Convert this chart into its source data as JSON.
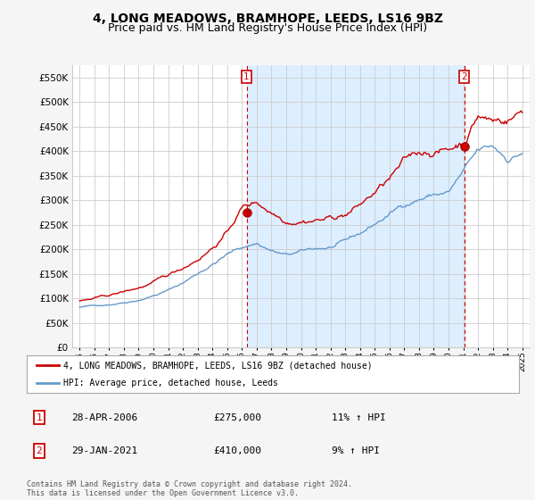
{
  "title": "4, LONG MEADOWS, BRAMHOPE, LEEDS, LS16 9BZ",
  "subtitle": "Price paid vs. HM Land Registry's House Price Index (HPI)",
  "legend_label_red": "4, LONG MEADOWS, BRAMHOPE, LEEDS, LS16 9BZ (detached house)",
  "legend_label_blue": "HPI: Average price, detached house, Leeds",
  "footnote": "Contains HM Land Registry data © Crown copyright and database right 2024.\nThis data is licensed under the Open Government Licence v3.0.",
  "annotation1": {
    "num": "1",
    "date": "28-APR-2006",
    "price": "£275,000",
    "hpi": "11% ↑ HPI"
  },
  "annotation2": {
    "num": "2",
    "date": "29-JAN-2021",
    "price": "£410,000",
    "hpi": "9% ↑ HPI"
  },
  "ylim": [
    0,
    575000
  ],
  "yticks": [
    0,
    50000,
    100000,
    150000,
    200000,
    250000,
    300000,
    350000,
    400000,
    450000,
    500000,
    550000
  ],
  "xlim_start": 1994.5,
  "xlim_end": 2025.5,
  "background_color": "#f5f5f5",
  "plot_bg_color": "#ffffff",
  "grid_color": "#cccccc",
  "red_color": "#cc0000",
  "blue_color": "#6699cc",
  "shade_color": "#ddeeff",
  "sale1_year": 2006.32,
  "sale1_value": 275000,
  "sale2_year": 2021.08,
  "sale2_value": 410000,
  "title_fontsize": 10,
  "subtitle_fontsize": 9
}
